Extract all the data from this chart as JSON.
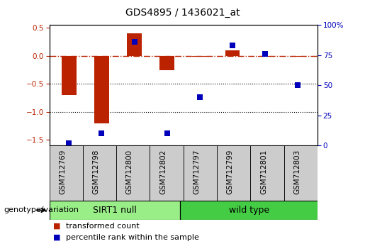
{
  "title": "GDS4895 / 1436021_at",
  "categories": [
    "GSM712769",
    "GSM712798",
    "GSM712800",
    "GSM712802",
    "GSM712797",
    "GSM712799",
    "GSM712801",
    "GSM712803"
  ],
  "red_values": [
    -0.7,
    -1.2,
    0.4,
    -0.25,
    -0.02,
    0.1,
    -0.02,
    -0.02
  ],
  "blue_values": [
    2,
    10,
    86,
    10,
    40,
    83,
    76,
    50
  ],
  "group1_label": "SIRT1 null",
  "group2_label": "wild type",
  "group_row_label": "genotype/variation",
  "ylim_left": [
    -1.6,
    0.55
  ],
  "ylim_right": [
    0,
    100
  ],
  "yticks_left": [
    0.5,
    0.0,
    -0.5,
    -1.0,
    -1.5
  ],
  "yticks_right": [
    100,
    75,
    50,
    25,
    0
  ],
  "red_color": "#bb2200",
  "blue_color": "#0000bb",
  "dotted_lines": [
    -0.5,
    -1.0
  ],
  "legend_label_red": "transformed count",
  "legend_label_blue": "percentile rank within the sample",
  "bar_width": 0.45,
  "title_fontsize": 10,
  "tick_fontsize": 7.5,
  "label_fontsize": 8,
  "group_label_fontsize": 9,
  "group_bg_color1": "#99ee88",
  "group_bg_color2": "#44cc44",
  "xtick_bg_color": "#cccccc",
  "group_border_color": "#000000",
  "genotype_label_fontsize": 8,
  "legend_fontsize": 8
}
